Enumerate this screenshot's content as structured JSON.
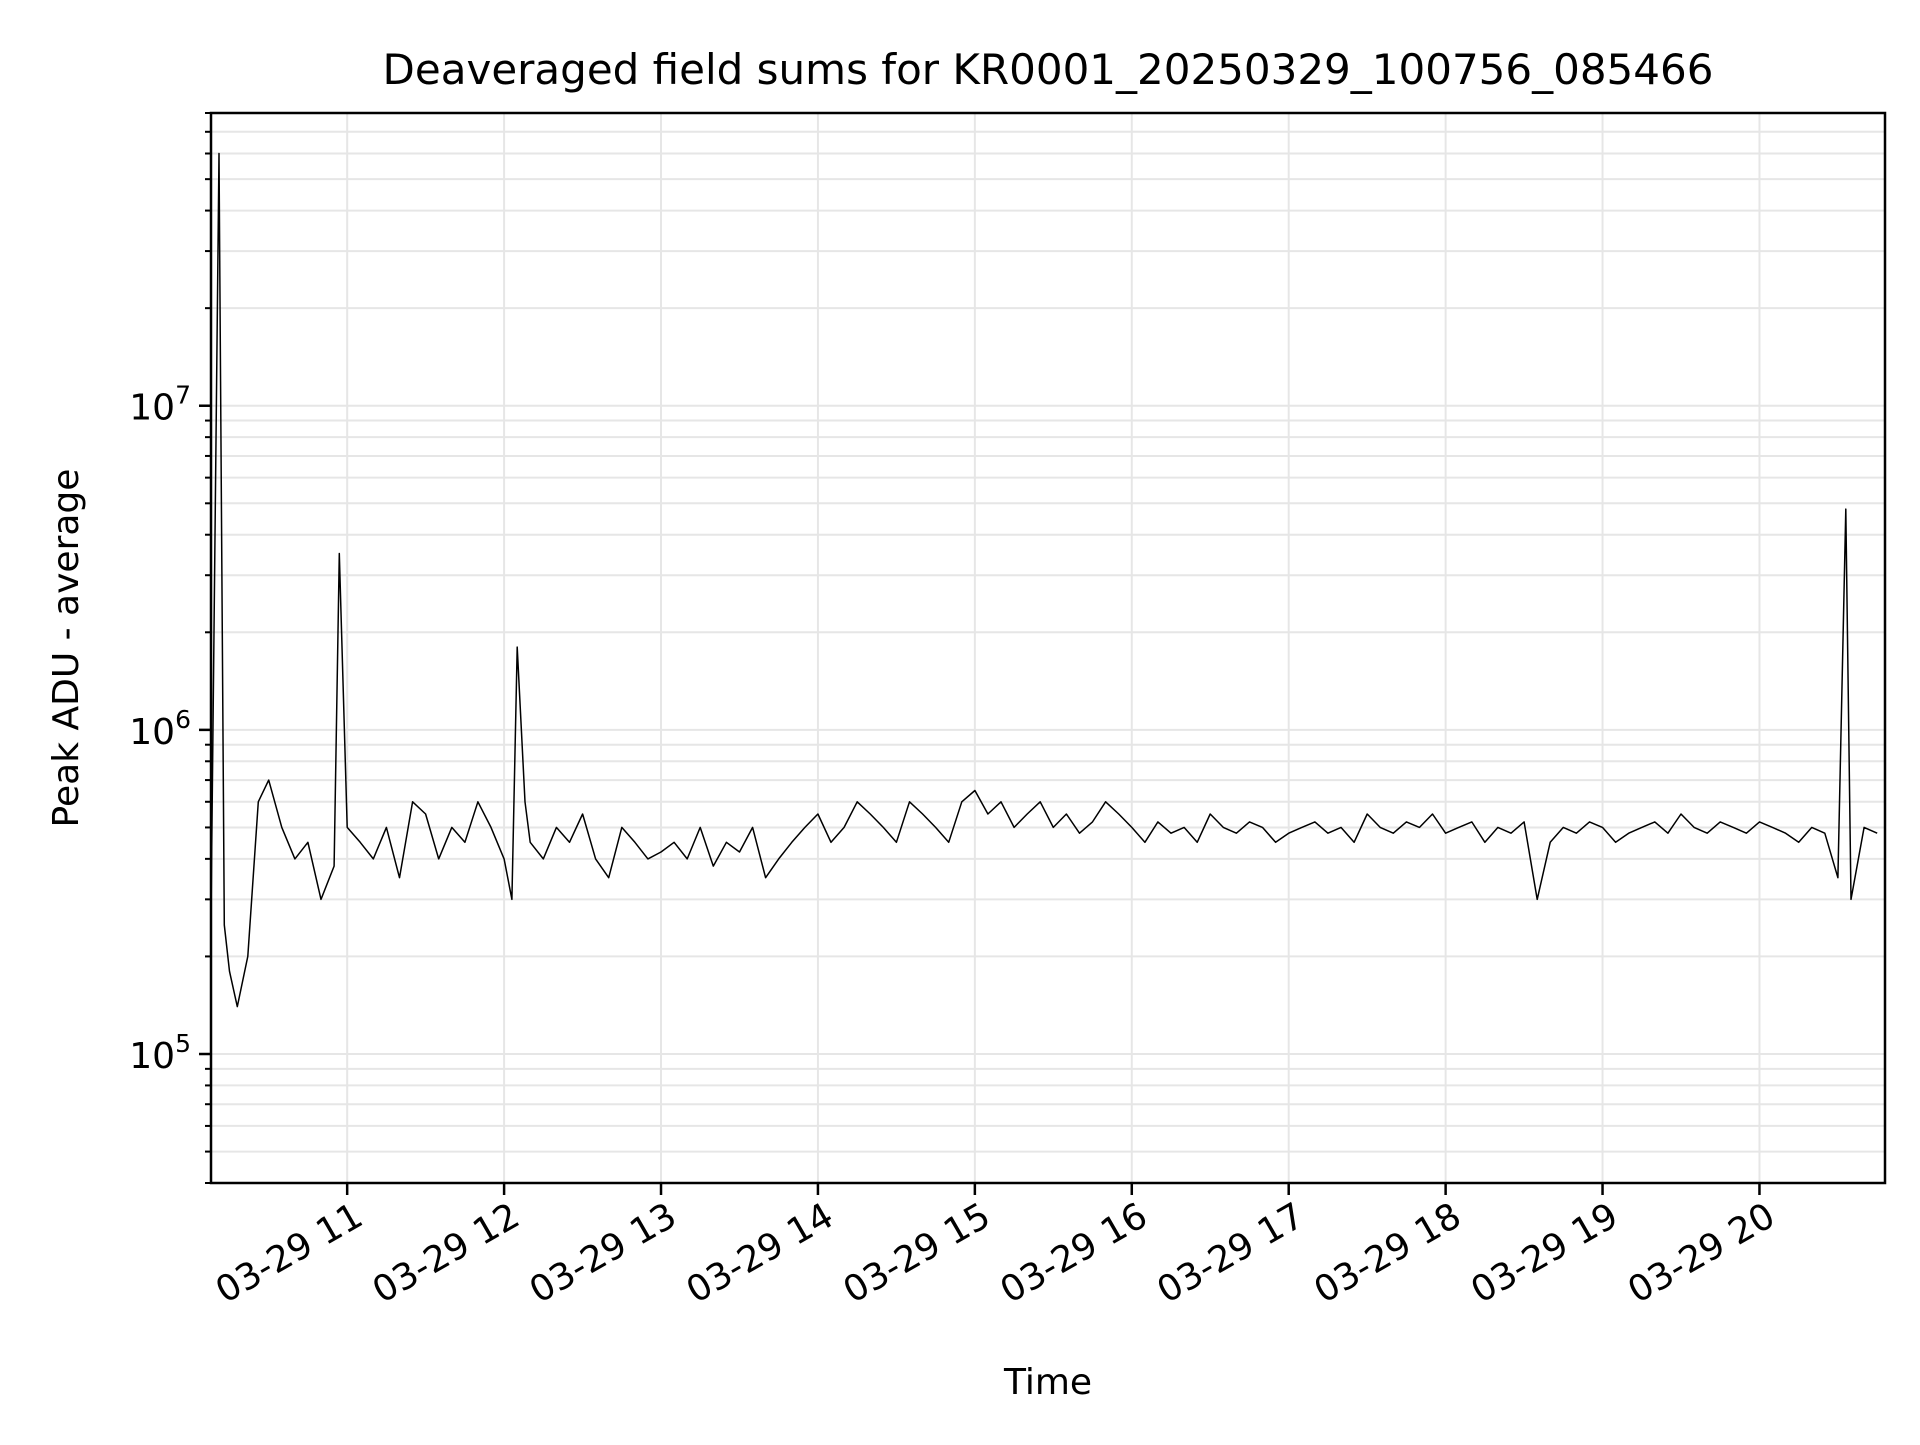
{
  "chart_data": {
    "type": "line",
    "title": "Deaveraged field sums for KR0001_20250329_100756_085466",
    "xlabel": "Time",
    "ylabel": "Peak ADU - average",
    "y_scale": "log",
    "grid": true,
    "grid_color": "#e6e6e6",
    "line_color": "#000000",
    "xlim": [
      "2025-03-29 10:07:56",
      "2025-03-29 20:48:00"
    ],
    "ylim": [
      40000,
      80000000
    ],
    "x_ticks": [
      {
        "value": "2025-03-29 11:00:00",
        "label": "03-29 11"
      },
      {
        "value": "2025-03-29 12:00:00",
        "label": "03-29 12"
      },
      {
        "value": "2025-03-29 13:00:00",
        "label": "03-29 13"
      },
      {
        "value": "2025-03-29 14:00:00",
        "label": "03-29 14"
      },
      {
        "value": "2025-03-29 15:00:00",
        "label": "03-29 15"
      },
      {
        "value": "2025-03-29 16:00:00",
        "label": "03-29 16"
      },
      {
        "value": "2025-03-29 17:00:00",
        "label": "03-29 17"
      },
      {
        "value": "2025-03-29 18:00:00",
        "label": "03-29 18"
      },
      {
        "value": "2025-03-29 19:00:00",
        "label": "03-29 19"
      },
      {
        "value": "2025-03-29 20:00:00",
        "label": "03-29 20"
      }
    ],
    "y_ticks": [
      {
        "value": 100000,
        "base": "10",
        "exp": "5"
      },
      {
        "value": 1000000,
        "base": "10",
        "exp": "6"
      },
      {
        "value": 10000000,
        "base": "10",
        "exp": "7"
      }
    ],
    "series": [
      {
        "x": [
          "2025-03-29 10:08:00",
          "2025-03-29 10:11:00",
          "2025-03-29 10:13:00",
          "2025-03-29 10:15:00",
          "2025-03-29 10:18:00",
          "2025-03-29 10:22:00",
          "2025-03-29 10:26:00",
          "2025-03-29 10:30:00",
          "2025-03-29 10:35:00",
          "2025-03-29 10:40:00",
          "2025-03-29 10:45:00",
          "2025-03-29 10:50:00",
          "2025-03-29 10:55:00",
          "2025-03-29 10:57:00",
          "2025-03-29 11:00:00",
          "2025-03-29 11:05:00",
          "2025-03-29 11:10:00",
          "2025-03-29 11:15:00",
          "2025-03-29 11:20:00",
          "2025-03-29 11:25:00",
          "2025-03-29 11:30:00",
          "2025-03-29 11:35:00",
          "2025-03-29 11:40:00",
          "2025-03-29 11:45:00",
          "2025-03-29 11:50:00",
          "2025-03-29 11:55:00",
          "2025-03-29 12:00:00",
          "2025-03-29 12:03:00",
          "2025-03-29 12:05:00",
          "2025-03-29 12:08:00",
          "2025-03-29 12:10:00",
          "2025-03-29 12:15:00",
          "2025-03-29 12:20:00",
          "2025-03-29 12:25:00",
          "2025-03-29 12:30:00",
          "2025-03-29 12:35:00",
          "2025-03-29 12:40:00",
          "2025-03-29 12:45:00",
          "2025-03-29 12:50:00",
          "2025-03-29 12:55:00",
          "2025-03-29 13:00:00",
          "2025-03-29 13:05:00",
          "2025-03-29 13:10:00",
          "2025-03-29 13:15:00",
          "2025-03-29 13:20:00",
          "2025-03-29 13:25:00",
          "2025-03-29 13:30:00",
          "2025-03-29 13:35:00",
          "2025-03-29 13:40:00",
          "2025-03-29 13:45:00",
          "2025-03-29 13:50:00",
          "2025-03-29 13:55:00",
          "2025-03-29 14:00:00",
          "2025-03-29 14:05:00",
          "2025-03-29 14:10:00",
          "2025-03-29 14:15:00",
          "2025-03-29 14:20:00",
          "2025-03-29 14:25:00",
          "2025-03-29 14:30:00",
          "2025-03-29 14:35:00",
          "2025-03-29 14:40:00",
          "2025-03-29 14:45:00",
          "2025-03-29 14:50:00",
          "2025-03-29 14:55:00",
          "2025-03-29 15:00:00",
          "2025-03-29 15:05:00",
          "2025-03-29 15:10:00",
          "2025-03-29 15:15:00",
          "2025-03-29 15:20:00",
          "2025-03-29 15:25:00",
          "2025-03-29 15:30:00",
          "2025-03-29 15:35:00",
          "2025-03-29 15:40:00",
          "2025-03-29 15:45:00",
          "2025-03-29 15:50:00",
          "2025-03-29 15:55:00",
          "2025-03-29 16:00:00",
          "2025-03-29 16:05:00",
          "2025-03-29 16:10:00",
          "2025-03-29 16:15:00",
          "2025-03-29 16:20:00",
          "2025-03-29 16:25:00",
          "2025-03-29 16:30:00",
          "2025-03-29 16:35:00",
          "2025-03-29 16:40:00",
          "2025-03-29 16:45:00",
          "2025-03-29 16:50:00",
          "2025-03-29 16:55:00",
          "2025-03-29 17:00:00",
          "2025-03-29 17:05:00",
          "2025-03-29 17:10:00",
          "2025-03-29 17:15:00",
          "2025-03-29 17:20:00",
          "2025-03-29 17:25:00",
          "2025-03-29 17:30:00",
          "2025-03-29 17:35:00",
          "2025-03-29 17:40:00",
          "2025-03-29 17:45:00",
          "2025-03-29 17:50:00",
          "2025-03-29 17:55:00",
          "2025-03-29 18:00:00",
          "2025-03-29 18:05:00",
          "2025-03-29 18:10:00",
          "2025-03-29 18:15:00",
          "2025-03-29 18:20:00",
          "2025-03-29 18:25:00",
          "2025-03-29 18:30:00",
          "2025-03-29 18:35:00",
          "2025-03-29 18:40:00",
          "2025-03-29 18:45:00",
          "2025-03-29 18:50:00",
          "2025-03-29 18:55:00",
          "2025-03-29 19:00:00",
          "2025-03-29 19:05:00",
          "2025-03-29 19:10:00",
          "2025-03-29 19:15:00",
          "2025-03-29 19:20:00",
          "2025-03-29 19:25:00",
          "2025-03-29 19:30:00",
          "2025-03-29 19:35:00",
          "2025-03-29 19:40:00",
          "2025-03-29 19:45:00",
          "2025-03-29 19:50:00",
          "2025-03-29 19:55:00",
          "2025-03-29 20:00:00",
          "2025-03-29 20:05:00",
          "2025-03-29 20:10:00",
          "2025-03-29 20:15:00",
          "2025-03-29 20:20:00",
          "2025-03-29 20:25:00",
          "2025-03-29 20:30:00",
          "2025-03-29 20:33:00",
          "2025-03-29 20:35:00",
          "2025-03-29 20:40:00",
          "2025-03-29 20:45:00"
        ],
        "y": [
          300000,
          60000000,
          250000,
          180000,
          140000,
          200000,
          600000,
          700000,
          500000,
          400000,
          450000,
          300000,
          380000,
          3500000,
          500000,
          450000,
          400000,
          500000,
          350000,
          600000,
          550000,
          400000,
          500000,
          450000,
          600000,
          500000,
          400000,
          300000,
          1800000,
          600000,
          450000,
          400000,
          500000,
          450000,
          550000,
          400000,
          350000,
          500000,
          450000,
          400000,
          420000,
          450000,
          400000,
          500000,
          380000,
          450000,
          420000,
          500000,
          350000,
          400000,
          450000,
          500000,
          550000,
          450000,
          500000,
          600000,
          550000,
          500000,
          450000,
          600000,
          550000,
          500000,
          450000,
          600000,
          650000,
          550000,
          600000,
          500000,
          550000,
          600000,
          500000,
          550000,
          480000,
          520000,
          600000,
          550000,
          500000,
          450000,
          520000,
          480000,
          500000,
          450000,
          550000,
          500000,
          480000,
          520000,
          500000,
          450000,
          480000,
          500000,
          520000,
          480000,
          500000,
          450000,
          550000,
          500000,
          480000,
          520000,
          500000,
          550000,
          480000,
          500000,
          520000,
          450000,
          500000,
          480000,
          520000,
          300000,
          450000,
          500000,
          480000,
          520000,
          500000,
          450000,
          480000,
          500000,
          520000,
          480000,
          550000,
          500000,
          480000,
          520000,
          500000,
          480000,
          520000,
          500000,
          480000,
          450000,
          500000,
          480000,
          350000,
          4800000,
          300000,
          500000,
          480000
        ]
      }
    ]
  }
}
